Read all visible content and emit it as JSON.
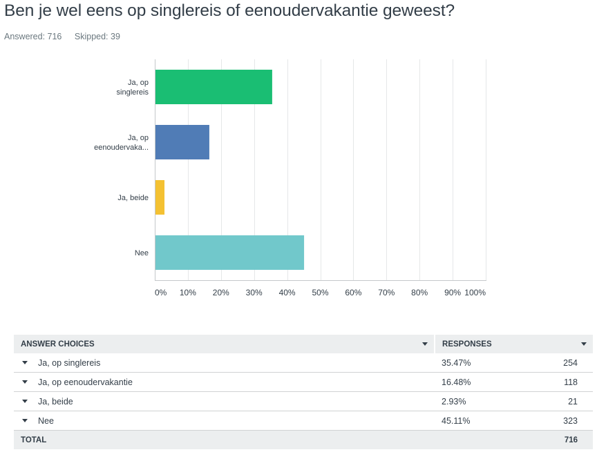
{
  "question": {
    "title": "Ben je wel eens op singlereis of eenoudervakantie geweest?",
    "answered": "Answered: 716",
    "skipped": "Skipped: 39"
  },
  "chart_data": {
    "type": "bar",
    "orientation": "horizontal",
    "categories": [
      "Ja, op singlereis",
      "Ja, op eenoudervakantie",
      "Ja, beide",
      "Nee"
    ],
    "category_display_labels": [
      [
        "Ja, op",
        "singlereis"
      ],
      [
        "Ja, op",
        "eenoudervaka..."
      ],
      [
        "Ja, beide"
      ],
      [
        "Nee"
      ]
    ],
    "values": [
      35.47,
      16.48,
      2.93,
      45.11
    ],
    "colors": [
      "#1abe73",
      "#507cb6",
      "#f4c132",
      "#71c8cb"
    ],
    "xlim": [
      0,
      100
    ],
    "xticks": [
      0,
      10,
      20,
      30,
      40,
      50,
      60,
      70,
      80,
      90,
      100
    ],
    "tick_labels": [
      "0%",
      "10%",
      "20%",
      "30%",
      "40%",
      "50%",
      "60%",
      "70%",
      "80%",
      "90%",
      "100%"
    ],
    "grid": true,
    "title": "",
    "xlabel": "",
    "ylabel": ""
  },
  "table": {
    "headers": {
      "choice": "ANSWER CHOICES",
      "responses": "RESPONSES"
    },
    "rows": [
      {
        "choice": "Ja, op singlereis",
        "percent": "35.47%",
        "count": "254"
      },
      {
        "choice": "Ja, op eenoudervakantie",
        "percent": "16.48%",
        "count": "118"
      },
      {
        "choice": "Ja, beide",
        "percent": "2.93%",
        "count": "21"
      },
      {
        "choice": "Nee",
        "percent": "45.11%",
        "count": "323"
      }
    ],
    "total_label": "TOTAL",
    "total_count": "716"
  }
}
